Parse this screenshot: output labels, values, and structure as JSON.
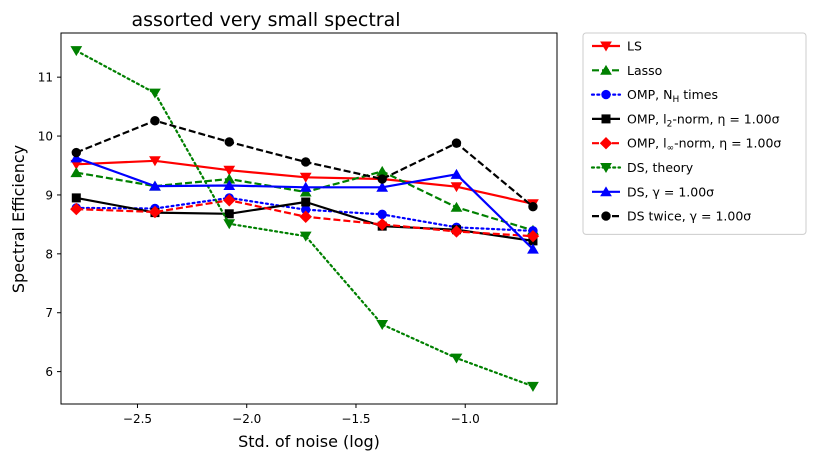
{
  "chart_data": {
    "type": "line",
    "title": "assorted very small spectral",
    "xlabel": "Std. of noise (log)",
    "ylabel": "Spectral Efficiency",
    "xlim": [
      -2.85,
      -0.58
    ],
    "ylim": [
      5.45,
      11.75
    ],
    "xticks": [
      -2.5,
      -2.0,
      -1.5,
      -1.0
    ],
    "xtick_labels": [
      "−2.5",
      "−2.0",
      "−1.5",
      "−1.0"
    ],
    "yticks": [
      6,
      7,
      8,
      9,
      10,
      11
    ],
    "ytick_labels": [
      "6",
      "7",
      "8",
      "9",
      "10",
      "11"
    ],
    "grid": false,
    "legend_position": "outside-right-top",
    "x": [
      -2.78,
      -2.42,
      -2.08,
      -1.73,
      -1.38,
      -1.04,
      -0.69
    ],
    "series": [
      {
        "legend_pre": "LS",
        "legend_sub": "",
        "legend_mid": "",
        "legend_post": "",
        "color": "#ff0000",
        "dash": "solid",
        "marker": "triangle-down",
        "values": [
          9.52,
          9.58,
          9.42,
          9.3,
          9.27,
          9.14,
          8.85
        ]
      },
      {
        "legend_pre": "Lasso",
        "legend_sub": "",
        "legend_mid": "",
        "legend_post": "",
        "color": "#008000",
        "dash": "dashed",
        "marker": "triangle-up",
        "values": [
          9.38,
          9.15,
          9.27,
          9.05,
          9.4,
          8.79,
          8.4
        ]
      },
      {
        "legend_pre": "OMP, N",
        "legend_sub": "H",
        "legend_mid": "",
        "legend_post": " times",
        "color": "#0000ff",
        "dash": "dotted",
        "marker": "circle",
        "values": [
          8.78,
          8.77,
          8.95,
          8.75,
          8.67,
          8.45,
          8.39
        ]
      },
      {
        "legend_pre": "OMP, l",
        "legend_sub": "2",
        "legend_mid": "-norm, η",
        "legend_post": " = 1.00σ",
        "color": "#000000",
        "dash": "solid",
        "marker": "square",
        "values": [
          8.95,
          8.7,
          8.68,
          8.88,
          8.47,
          8.41,
          8.22
        ]
      },
      {
        "legend_pre": "OMP, l",
        "legend_sub": "∞",
        "legend_mid": "-norm, η",
        "legend_post": " = 1.00σ",
        "color": "#ff0000",
        "dash": "dashed",
        "marker": "diamond",
        "values": [
          8.76,
          8.71,
          8.91,
          8.63,
          8.5,
          8.38,
          8.3
        ]
      },
      {
        "legend_pre": "DS, theory",
        "legend_sub": "",
        "legend_mid": "",
        "legend_post": "",
        "color": "#008000",
        "dash": "dotted",
        "marker": "triangle-down",
        "values": [
          11.45,
          10.73,
          8.51,
          8.3,
          6.8,
          6.23,
          5.75
        ]
      },
      {
        "legend_pre": "DS, γ",
        "legend_sub": "",
        "legend_mid": "",
        "legend_post": " = 1.00σ",
        "color": "#0000ff",
        "dash": "solid",
        "marker": "triangle-up",
        "values": [
          9.63,
          9.15,
          9.16,
          9.13,
          9.13,
          9.35,
          8.08
        ]
      },
      {
        "legend_pre": "DS twice, γ",
        "legend_sub": "",
        "legend_mid": "",
        "legend_post": " = 1.00σ",
        "color": "#000000",
        "dash": "dashed",
        "marker": "circle",
        "values": [
          9.72,
          10.26,
          9.9,
          9.56,
          9.27,
          9.88,
          8.8
        ]
      }
    ]
  }
}
